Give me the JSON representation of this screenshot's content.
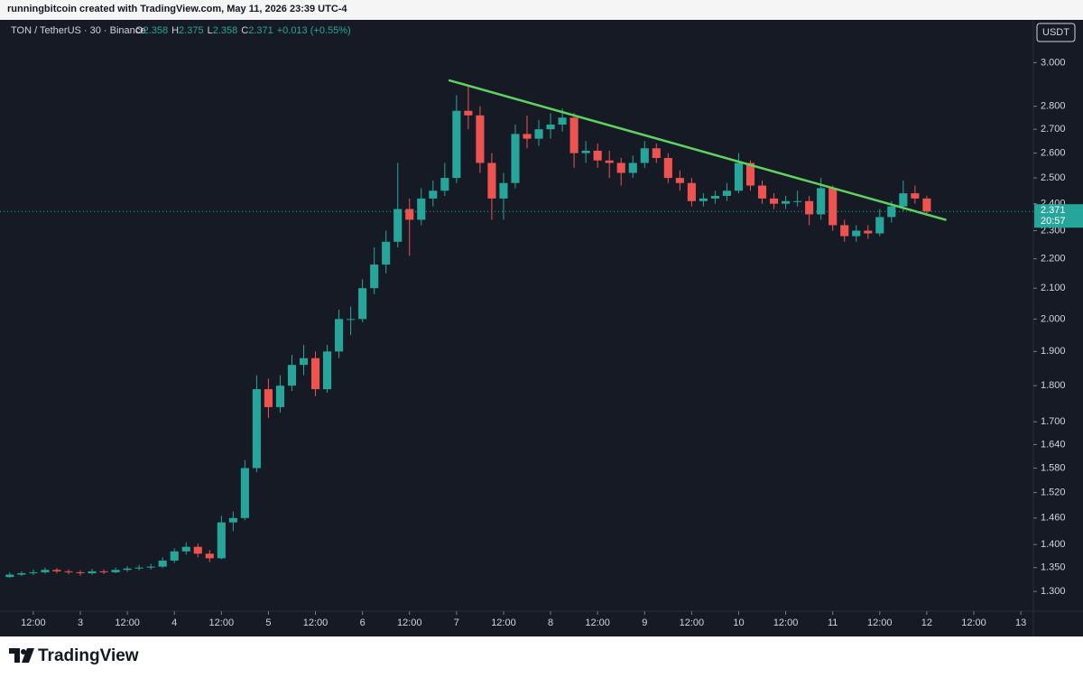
{
  "header": {
    "text": "runningbitcoin created with TradingView.com, May 11, 2026 23:39 UTC-4"
  },
  "chart_data": {
    "type": "candlestick",
    "symbol": "TON / TetherUS · 30 · Binance",
    "ohlc_labels": [
      "O",
      "H",
      "L",
      "C"
    ],
    "ohlc": [
      2.358,
      2.375,
      2.358,
      2.371
    ],
    "change": "+0.013 (+0.55%)",
    "currency": "USDT",
    "countdown": "20:57",
    "log_scale": true,
    "up_color": "#26a69a",
    "down_color": "#ef5350",
    "ylim": [
      1.26,
      3.21
    ],
    "yticks": [
      {
        "value": 1.3,
        "label": "1.300"
      },
      {
        "value": 1.35,
        "label": "1.350"
      },
      {
        "value": 1.4,
        "label": "1.400"
      },
      {
        "value": 1.46,
        "label": "1.460"
      },
      {
        "value": 1.52,
        "label": "1.520"
      },
      {
        "value": 1.58,
        "label": "1.580"
      },
      {
        "value": 1.64,
        "label": "1.640"
      },
      {
        "value": 1.7,
        "label": "1.700"
      },
      {
        "value": 1.8,
        "label": "1.800"
      },
      {
        "value": 1.9,
        "label": "1.900"
      },
      {
        "value": 2.0,
        "label": "2.000"
      },
      {
        "value": 2.1,
        "label": "2.100"
      },
      {
        "value": 2.2,
        "label": "2.200"
      },
      {
        "value": 2.3,
        "label": "2.300"
      },
      {
        "value": 2.4,
        "label": "2.400"
      },
      {
        "value": 2.5,
        "label": "2.500"
      },
      {
        "value": 2.6,
        "label": "2.600"
      },
      {
        "value": 2.7,
        "label": "2.700"
      },
      {
        "value": 2.8,
        "label": "2.800"
      },
      {
        "value": 3.0,
        "label": "3.000"
      }
    ],
    "xlim": [
      3.5,
      267.2
    ],
    "xticks": [
      {
        "value": 12,
        "label": "12:00"
      },
      {
        "value": 24,
        "label": "3"
      },
      {
        "value": 36,
        "label": "12:00"
      },
      {
        "value": 48,
        "label": "4"
      },
      {
        "value": 60,
        "label": "12:00"
      },
      {
        "value": 72,
        "label": "5"
      },
      {
        "value": 84,
        "label": "12:00"
      },
      {
        "value": 96,
        "label": "6"
      },
      {
        "value": 108,
        "label": "12:00"
      },
      {
        "value": 120,
        "label": "7"
      },
      {
        "value": 132,
        "label": "12:00"
      },
      {
        "value": 144,
        "label": "8"
      },
      {
        "value": 156,
        "label": "12:00"
      },
      {
        "value": 168,
        "label": "9"
      },
      {
        "value": 180,
        "label": "12:00"
      },
      {
        "value": 192,
        "label": "10"
      },
      {
        "value": 204,
        "label": "12:00"
      },
      {
        "value": 216,
        "label": "11"
      },
      {
        "value": 228,
        "label": "12:00"
      },
      {
        "value": 240,
        "label": "12"
      },
      {
        "value": 252,
        "label": "12:00"
      },
      {
        "value": 264,
        "label": "13"
      }
    ],
    "x": [
      6,
      9,
      12,
      15,
      18,
      21,
      24,
      27,
      30,
      33,
      36,
      39,
      42,
      45,
      48,
      51,
      54,
      57,
      60,
      63,
      66,
      69,
      72,
      75,
      78,
      81,
      84,
      87,
      90,
      93,
      96,
      99,
      102,
      105,
      108,
      111,
      114,
      117,
      120,
      123,
      126,
      129,
      132,
      135,
      138,
      141,
      144,
      147,
      150,
      153,
      156,
      159,
      162,
      165,
      168,
      171,
      174,
      177,
      180,
      183,
      186,
      189,
      192,
      195,
      198,
      201,
      204,
      207,
      210,
      213,
      216,
      219,
      222,
      225,
      228,
      231,
      234,
      237,
      240
    ],
    "open": [
      1.33,
      1.335,
      1.338,
      1.34,
      1.345,
      1.342,
      1.34,
      1.338,
      1.342,
      1.34,
      1.345,
      1.348,
      1.35,
      1.352,
      1.365,
      1.385,
      1.395,
      1.38,
      1.37,
      1.45,
      1.46,
      1.58,
      1.79,
      1.74,
      1.8,
      1.86,
      1.88,
      1.79,
      1.9,
      2.0,
      2.0,
      2.1,
      2.18,
      2.26,
      2.38,
      2.34,
      2.42,
      2.45,
      2.5,
      2.78,
      2.76,
      2.56,
      2.42,
      2.48,
      2.68,
      2.66,
      2.7,
      2.72,
      2.75,
      2.6,
      2.61,
      2.57,
      2.56,
      2.52,
      2.56,
      2.62,
      2.58,
      2.5,
      2.48,
      2.41,
      2.42,
      2.43,
      2.45,
      2.56,
      2.47,
      2.42,
      2.4,
      2.41,
      2.41,
      2.36,
      2.46,
      2.32,
      2.28,
      2.3,
      2.29,
      2.35,
      2.39,
      2.44,
      2.42
    ],
    "high": [
      1.34,
      1.342,
      1.346,
      1.35,
      1.349,
      1.346,
      1.344,
      1.347,
      1.346,
      1.35,
      1.353,
      1.356,
      1.358,
      1.372,
      1.392,
      1.405,
      1.402,
      1.388,
      1.465,
      1.475,
      1.6,
      1.83,
      1.82,
      1.83,
      1.89,
      1.92,
      1.9,
      1.92,
      2.03,
      2.04,
      2.13,
      2.24,
      2.3,
      2.56,
      2.42,
      2.46,
      2.49,
      2.56,
      2.85,
      2.89,
      2.8,
      2.6,
      2.52,
      2.72,
      2.76,
      2.74,
      2.77,
      2.79,
      2.77,
      2.65,
      2.64,
      2.61,
      2.58,
      2.59,
      2.65,
      2.64,
      2.6,
      2.53,
      2.5,
      2.44,
      2.45,
      2.48,
      2.6,
      2.57,
      2.49,
      2.44,
      2.43,
      2.45,
      2.43,
      2.5,
      2.47,
      2.34,
      2.32,
      2.32,
      2.38,
      2.41,
      2.49,
      2.47,
      2.43
    ],
    "low": [
      1.328,
      1.332,
      1.334,
      1.337,
      1.338,
      1.336,
      1.333,
      1.335,
      1.336,
      1.338,
      1.341,
      1.344,
      1.346,
      1.349,
      1.36,
      1.378,
      1.372,
      1.362,
      1.368,
      1.43,
      1.455,
      1.57,
      1.71,
      1.725,
      1.785,
      1.83,
      1.77,
      1.78,
      1.88,
      1.95,
      1.99,
      2.08,
      2.15,
      2.24,
      2.21,
      2.32,
      2.39,
      2.43,
      2.48,
      2.7,
      2.52,
      2.34,
      2.34,
      2.46,
      2.62,
      2.63,
      2.66,
      2.69,
      2.54,
      2.56,
      2.54,
      2.5,
      2.47,
      2.5,
      2.54,
      2.56,
      2.48,
      2.45,
      2.39,
      2.39,
      2.4,
      2.41,
      2.44,
      2.45,
      2.4,
      2.38,
      2.38,
      2.39,
      2.32,
      2.34,
      2.3,
      2.26,
      2.26,
      2.27,
      2.28,
      2.33,
      2.37,
      2.4,
      2.358
    ],
    "close": [
      1.335,
      1.338,
      1.34,
      1.345,
      1.342,
      1.34,
      1.338,
      1.342,
      1.34,
      1.345,
      1.348,
      1.35,
      1.352,
      1.365,
      1.385,
      1.395,
      1.38,
      1.37,
      1.45,
      1.46,
      1.58,
      1.79,
      1.74,
      1.8,
      1.86,
      1.88,
      1.79,
      1.9,
      2.0,
      2.0,
      2.1,
      2.18,
      2.26,
      2.38,
      2.34,
      2.42,
      2.45,
      2.5,
      2.78,
      2.76,
      2.56,
      2.42,
      2.48,
      2.68,
      2.66,
      2.7,
      2.72,
      2.75,
      2.6,
      2.61,
      2.57,
      2.56,
      2.52,
      2.56,
      2.62,
      2.58,
      2.5,
      2.48,
      2.41,
      2.42,
      2.43,
      2.45,
      2.56,
      2.47,
      2.42,
      2.4,
      2.41,
      2.41,
      2.36,
      2.46,
      2.32,
      2.28,
      2.3,
      2.29,
      2.35,
      2.39,
      2.44,
      2.42,
      2.371
    ],
    "trendline": {
      "x": [
        118,
        245
      ],
      "y": [
        2.918,
        2.339
      ],
      "color": "#5fd35f"
    }
  },
  "footer": {
    "brand": "TradingView"
  }
}
